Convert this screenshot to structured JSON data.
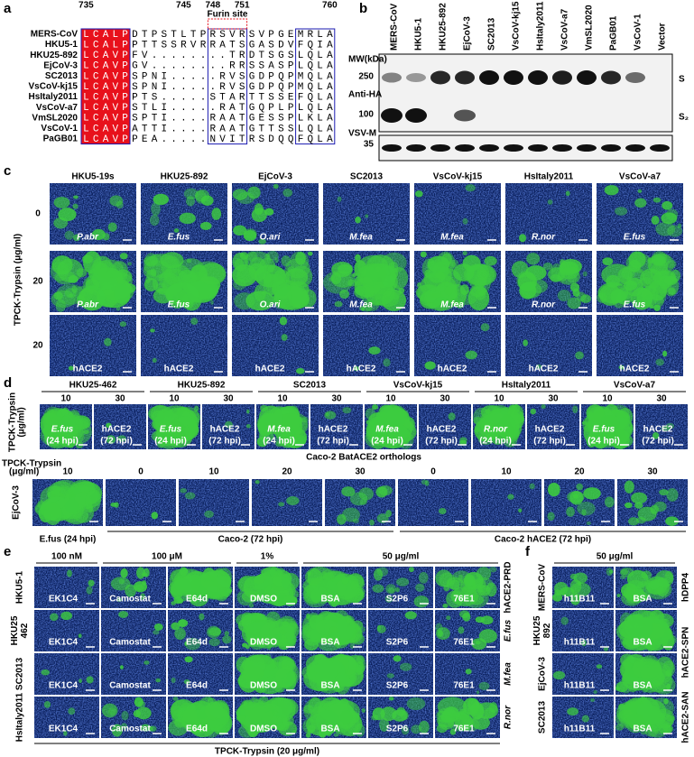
{
  "panel_a": {
    "letter": "a",
    "positions": [
      "735",
      "745",
      "748",
      "751",
      "760"
    ],
    "furin_label": "Furin site",
    "rows": [
      {
        "name": "MERS-CoV",
        "head": "LCALP",
        "mid": "DTPSTLTPRSVRSVPGE",
        "tail": "MRLA"
      },
      {
        "name": "HKU5-1",
        "head": "LCALP",
        "mid": "PTTSSRVRRATSGASDV",
        "tail": "FQIA"
      },
      {
        "name": "HKU25-892",
        "head": "LCAVP",
        "mid": "FV........TRDTSGS",
        "tail": "LQLA"
      },
      {
        "name": "EjCoV-3",
        "head": "LCAVP",
        "mid": "GV........RRSSASP",
        "tail": "LQLA"
      },
      {
        "name": "SC2013",
        "head": "LCAVP",
        "mid": "SPNI.....RVSGDPQP",
        "tail": "MQLA"
      },
      {
        "name": "VsCoV-kj15",
        "head": "LCAVP",
        "mid": "SPNI.....RVSGDPQP",
        "tail": "MQLA"
      },
      {
        "name": "HsItaly2011",
        "head": "LCAVP",
        "mid": "PTS.....STARTTSSE",
        "tail": "FQLA"
      },
      {
        "name": "VsCoV-a7",
        "head": "LCAVP",
        "mid": "STLI.....RATGQPLP",
        "tail": "LQLA"
      },
      {
        "name": "VmSL2020",
        "head": "LCAVP",
        "mid": "SPTI....RAATGESSP",
        "tail": "LKLA"
      },
      {
        "name": "VsCoV-1",
        "head": "LCAVP",
        "mid": "ATTI....RAATGTTSS",
        "tail": "LQLA"
      },
      {
        "name": "PaGB01",
        "head": "LCAVP",
        "mid": "PEA.....NVITRSDQQ",
        "tail": "FQLA"
      }
    ]
  },
  "panel_b": {
    "letter": "b",
    "lanes": [
      "MERS-CoV",
      "HKU5-1",
      "HKU25-892",
      "EjCoV-3",
      "SC2013",
      "VsCoV-kj15",
      "HsItaly2011",
      "VsCoV-a7",
      "VmSL2020",
      "PaGB01",
      "VsCoV-1",
      "Vector"
    ],
    "mw_label": "MW(kDa)",
    "markers": [
      "250",
      "100",
      "35"
    ],
    "antibodies": [
      "Anti-HA",
      "VSV-M"
    ],
    "bands": [
      "S",
      "S₂"
    ]
  },
  "panel_c": {
    "letter": "c",
    "axis_label": "TPCK-Trypsin (μg/ml)",
    "row_labels": [
      "0",
      "20",
      "20"
    ],
    "columns": [
      {
        "name": "HKU5-19s",
        "species": "P.abr"
      },
      {
        "name": "HKU25-892",
        "species": "E.fus"
      },
      {
        "name": "EjCoV-3",
        "species": "O.ari"
      },
      {
        "name": "SC2013",
        "species": "M.fea"
      },
      {
        "name": "VsCoV-kj15",
        "species": "M.fea"
      },
      {
        "name": "HsItaly2011",
        "species": "R.nor"
      },
      {
        "name": "VsCoV-a7",
        "species": "E.fus"
      }
    ],
    "receptor_label": "hACE2"
  },
  "panel_d": {
    "letter": "d",
    "axis_label_lines": [
      "TPCK-Trypsin",
      "(μg/ml)"
    ],
    "groups": [
      {
        "name": "HKU25-462",
        "species": "E.fus"
      },
      {
        "name": "HKU25-892",
        "species": "E.fus"
      },
      {
        "name": "SC2013",
        "species": "M.fea"
      },
      {
        "name": "VsCoV-kj15",
        "species": "M.fea"
      },
      {
        "name": "HsItaly2011",
        "species": "R.nor"
      },
      {
        "name": "VsCoV-a7",
        "species": "E.fus"
      }
    ],
    "doses": [
      "10",
      "30"
    ],
    "receptor_label": "hACE2",
    "time_24": "(24 hpi)",
    "time_72": "(72 hpi)",
    "caption": "Caco-2 BatACE2 orthologs",
    "bottom": {
      "axis_label_lines": [
        "TPCK-Trypsin",
        "(μg/ml)"
      ],
      "virus": "EjCoV-3",
      "doses": [
        "10",
        "0",
        "10",
        "20",
        "30",
        "0",
        "10",
        "20",
        "30"
      ],
      "captions": [
        "E.fus (24 hpi)",
        "Caco-2 (72 hpi)",
        "Caco-2 hACE2 (72 hpi)"
      ]
    }
  },
  "panel_e": {
    "letter": "e",
    "headers": [
      "100 nM",
      "100 μM",
      "1%",
      "50 μg/ml"
    ],
    "rows": [
      {
        "lines": [
          "HKU5-1"
        ],
        "side": "hACE2-PRD"
      },
      {
        "lines": [
          "HKU25",
          "462"
        ],
        "side": "E.fus"
      },
      {
        "lines": [
          "SC2013"
        ],
        "side": "M.fea"
      },
      {
        "lines": [
          "HsItaly2011"
        ],
        "side": "R.nor"
      }
    ],
    "treatments": [
      "EK1C4",
      "Camostat",
      "E64d",
      "DMSO",
      "BSA",
      "S2P6",
      "76E1"
    ],
    "footer": "TPCK-Trypsin (20 μg/ml)"
  },
  "panel_f": {
    "letter": "f",
    "header": "50 μg/ml",
    "rows": [
      [
        "MERS-CoV"
      ],
      [
        "HKU25",
        "892"
      ],
      [
        "EjCoV-3"
      ],
      [
        "SC2013"
      ]
    ],
    "treatments": [
      "h11B11",
      "BSA"
    ],
    "side_labels": [
      "hDPP4",
      "hACE2-SPN",
      "hACE2-SAN"
    ]
  }
}
